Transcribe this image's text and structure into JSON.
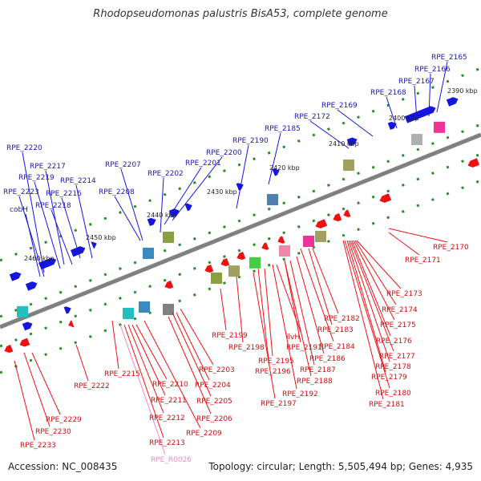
{
  "title": "Rhodopseudomonas palustris BisA53, complete genome",
  "footer": {
    "accession": "Accession: NC_008435",
    "summary": "Topology: circular; Length: 5,505,494 bp; Genes: 4,935"
  },
  "colors": {
    "strand_forward": "#1515e0",
    "strand_reverse": "#ee1111",
    "label_forward": "#1a1ab0",
    "label_reverse": "#cc1010",
    "label_rna": "#ee88cc",
    "backbone": "#808080",
    "tick": "#2e8b2e"
  },
  "ticks": [
    {
      "label": "2390 kbp"
    },
    {
      "label": "2400 kbp"
    },
    {
      "label": "2410 kbp"
    },
    {
      "label": "2420 kbp"
    },
    {
      "label": "2430 kbp"
    },
    {
      "label": "2440 kbp"
    },
    {
      "label": "2450 kbp"
    },
    {
      "label": "2460 kbp"
    }
  ],
  "labels_top": [
    "RPE_2165",
    "RPE_2166",
    "RPE_2167",
    "RPE_2168",
    "RPE_2169",
    "RPE_2172",
    "RPE_2185",
    "RPE_2190",
    "RPE_2200",
    "RPE_2201",
    "RPE_2202",
    "RPE_2207",
    "RPE_2208",
    "RPE_2214",
    "RPE_2216",
    "RPE_2217",
    "RPE_2218",
    "RPE_2219",
    "RPE_2220",
    "RPE_2223",
    "cobH"
  ],
  "labels_bottom": [
    "RPE_2170",
    "RPE_2171",
    "RPE_2173",
    "RPE_2174",
    "RPE_2175",
    "RPE_2176",
    "RPE_2177",
    "RPE_2178",
    "RPE_2179",
    "RPE_2180",
    "RPE_2181",
    "RPE_2182",
    "RPE_2183",
    "RPE_2184",
    "RPE_2186",
    "RPE_2187",
    "RPE_2188",
    "RPE_2191",
    "ilvH",
    "RPE_2192",
    "RPE_2195",
    "RPE_2196",
    "RPE_2197",
    "RPE_2198",
    "RPE_2199",
    "RPE_2203",
    "RPE_2204",
    "RPE_2205",
    "RPE_2206",
    "RPE_2209",
    "RPE_2210",
    "RPE_2211",
    "RPE_2212",
    "RPE_2213",
    "RPE_R0026",
    "RPE_2215",
    "RPE_2222",
    "RPE_2229",
    "RPE_2230",
    "RPE_2233"
  ]
}
